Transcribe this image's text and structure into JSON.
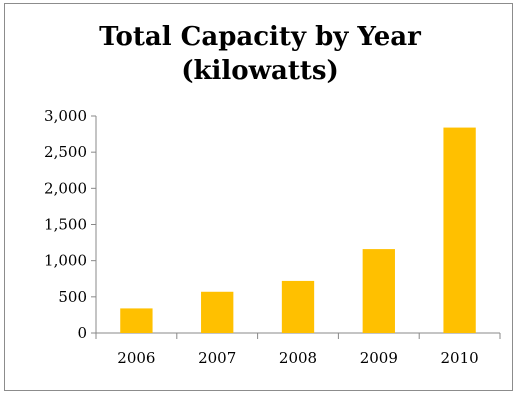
{
  "chart_data": {
    "type": "bar",
    "title_line1": "Total Capacity by Year",
    "title_line2": "(kilowatts)",
    "categories": [
      "2006",
      "2007",
      "2008",
      "2009",
      "2010"
    ],
    "values": [
      340,
      570,
      720,
      1160,
      2840
    ],
    "ylim": [
      0,
      3000
    ],
    "yticks": [
      0,
      500,
      1000,
      1500,
      2000,
      2500,
      3000
    ],
    "ytick_labels": [
      "0",
      "500",
      "1,000",
      "1,500",
      "2,000",
      "2,500",
      "3,000"
    ],
    "bar_color": "#FFC000",
    "grid": false,
    "legend": "none"
  }
}
